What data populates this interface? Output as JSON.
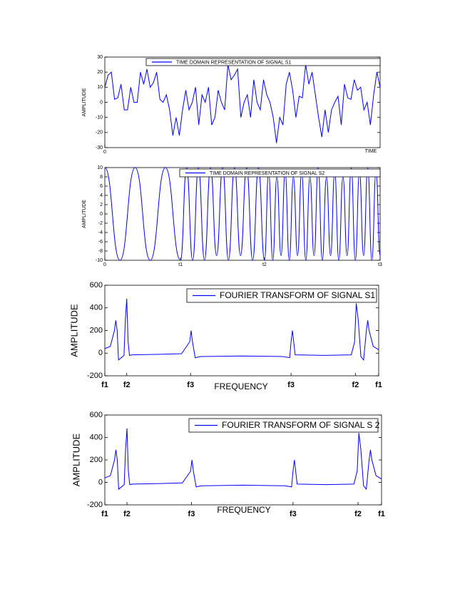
{
  "chart_data": [
    {
      "type": "line",
      "ylabel": "AMPLITUDE",
      "xlabel": "TIME",
      "ylim": [
        -30,
        30
      ],
      "yticks": [
        -30,
        -20,
        -10,
        0,
        10,
        20,
        30
      ],
      "xticks": [
        0
      ],
      "series": [
        {
          "name": "TIME DOMAIN REPRESENTATION OF SIGNAL S1",
          "color": "#0000ff",
          "values": [
            10,
            18,
            20,
            2,
            3,
            12,
            -5,
            -5,
            10,
            0,
            0,
            20,
            12,
            22,
            10,
            13,
            20,
            2,
            0,
            5,
            -5,
            -22,
            -10,
            -22,
            -5,
            8,
            -5,
            0,
            10,
            -15,
            5,
            0,
            10,
            -15,
            -10,
            8,
            0,
            -5,
            25,
            15,
            18,
            22,
            -10,
            0,
            5,
            -10,
            15,
            0,
            -5,
            15,
            5,
            0,
            -10,
            -27,
            -10,
            -15,
            12,
            20,
            8,
            -10,
            4,
            3,
            25,
            12,
            20,
            5,
            -10,
            -23,
            -5,
            -20,
            -5,
            0,
            4,
            -15,
            12,
            3,
            2,
            15,
            8,
            10,
            -5,
            0,
            -15,
            5,
            20,
            10
          ]
        }
      ]
    },
    {
      "type": "line",
      "ylabel": "AMPLITUDE",
      "smooth": true,
      "ylim": [
        -10,
        10
      ],
      "yticks": [
        -10,
        -8,
        -6,
        -4,
        -2,
        0,
        2,
        4,
        6,
        8,
        10
      ],
      "xlim": [
        0,
        1
      ],
      "xticks": [
        0,
        {
          "value": 0.275,
          "label": "t1"
        },
        {
          "value": 0.58,
          "label": "t2"
        },
        {
          "value": 1,
          "label": "t3"
        }
      ],
      "x": [
        0,
        0.055,
        0.11,
        0.165,
        0.22,
        0.275,
        0.297,
        0.319,
        0.34,
        0.362,
        0.384,
        0.406,
        0.428,
        0.449,
        0.471,
        0.493,
        0.515,
        0.537,
        0.558,
        0.58,
        0.595,
        0.61,
        0.625,
        0.64,
        0.655,
        0.67,
        0.685,
        0.7,
        0.715,
        0.73,
        0.745,
        0.76,
        0.775,
        0.79,
        0.805,
        0.82,
        0.835,
        0.85,
        0.865,
        0.88,
        0.895,
        0.91,
        0.925,
        0.94,
        0.955,
        0.97,
        0.985,
        1.0
      ],
      "series": [
        {
          "name": "TIME DOMAIN REPRESENTATION OF SIGNAL S2",
          "color": "#0000ff",
          "values": [
            10,
            -10,
            10,
            -10,
            10,
            -10,
            10,
            -10,
            10,
            -10,
            10,
            -9,
            10,
            -10,
            10,
            -9,
            10,
            -10,
            10,
            -10,
            9,
            -10,
            8,
            -9,
            9,
            -10,
            8,
            -9,
            9,
            -10,
            8,
            -9,
            10,
            -10,
            8,
            -9,
            9,
            -10,
            8,
            -9,
            10,
            -10,
            9,
            -9,
            10,
            -10,
            9,
            -9
          ]
        }
      ]
    },
    {
      "type": "line",
      "ylabel": "AMPLITUDE",
      "xlabel": "FREQUENCY",
      "ylim": [
        -200,
        600
      ],
      "yticks": [
        -200,
        0,
        200,
        400,
        600
      ],
      "xlim": [
        0,
        1
      ],
      "xticks": [
        {
          "value": 0,
          "label": "f1"
        },
        {
          "value": 0.08,
          "label": "f2"
        },
        {
          "value": 0.313,
          "label": "f3"
        },
        {
          "value": 0.68,
          "label": "f3"
        },
        {
          "value": 0.915,
          "label": "f2"
        },
        {
          "value": 1,
          "label": "f1"
        }
      ],
      "x": [
        0,
        0.02,
        0.035,
        0.04,
        0.045,
        0.05,
        0.06,
        0.07,
        0.075,
        0.08,
        0.085,
        0.09,
        0.1,
        0.2,
        0.28,
        0.31,
        0.315,
        0.32,
        0.33,
        0.35,
        0.5,
        0.65,
        0.675,
        0.68,
        0.685,
        0.695,
        0.8,
        0.9,
        0.912,
        0.918,
        0.925,
        0.935,
        0.945,
        0.955,
        0.96,
        0.965,
        0.98,
        1.0
      ],
      "series": [
        {
          "name": "FOURIER TRANSFORM OF SIGNAL S1",
          "color": "#0000ff",
          "values": [
            40,
            60,
            200,
            290,
            200,
            -60,
            -40,
            -20,
            300,
            480,
            100,
            -20,
            -15,
            -10,
            -5,
            100,
            200,
            100,
            -40,
            -30,
            -25,
            -30,
            -40,
            100,
            200,
            -15,
            -20,
            -15,
            100,
            440,
            300,
            -30,
            -60,
            200,
            290,
            200,
            60,
            30
          ]
        }
      ]
    },
    {
      "type": "line",
      "ylabel": "AMPLITUDE",
      "xlabel": "FREQUENCY",
      "ylim": [
        -200,
        600
      ],
      "yticks": [
        -200,
        0,
        200,
        400,
        600
      ],
      "xlim": [
        0,
        1
      ],
      "xticks": [
        {
          "value": 0,
          "label": "f1"
        },
        {
          "value": 0.08,
          "label": "f2"
        },
        {
          "value": 0.313,
          "label": "f3"
        },
        {
          "value": 0.68,
          "label": "f3"
        },
        {
          "value": 0.915,
          "label": "f2"
        },
        {
          "value": 1,
          "label": "f1"
        }
      ],
      "x": [
        0,
        0.02,
        0.035,
        0.04,
        0.045,
        0.05,
        0.06,
        0.07,
        0.075,
        0.08,
        0.085,
        0.09,
        0.1,
        0.2,
        0.28,
        0.31,
        0.315,
        0.32,
        0.33,
        0.35,
        0.5,
        0.65,
        0.675,
        0.68,
        0.685,
        0.695,
        0.8,
        0.9,
        0.912,
        0.918,
        0.925,
        0.935,
        0.945,
        0.955,
        0.96,
        0.965,
        0.98,
        1.0
      ],
      "series": [
        {
          "name": "FOURIER TRANSFORM OF SIGNAL S 2",
          "color": "#0000ff",
          "values": [
            40,
            60,
            200,
            290,
            200,
            -60,
            -40,
            -20,
            300,
            480,
            100,
            -20,
            -15,
            -10,
            -5,
            100,
            200,
            100,
            -40,
            -30,
            -25,
            -30,
            -40,
            100,
            200,
            -15,
            -20,
            -15,
            100,
            440,
            300,
            -30,
            -60,
            200,
            290,
            200,
            60,
            30
          ]
        }
      ]
    }
  ]
}
